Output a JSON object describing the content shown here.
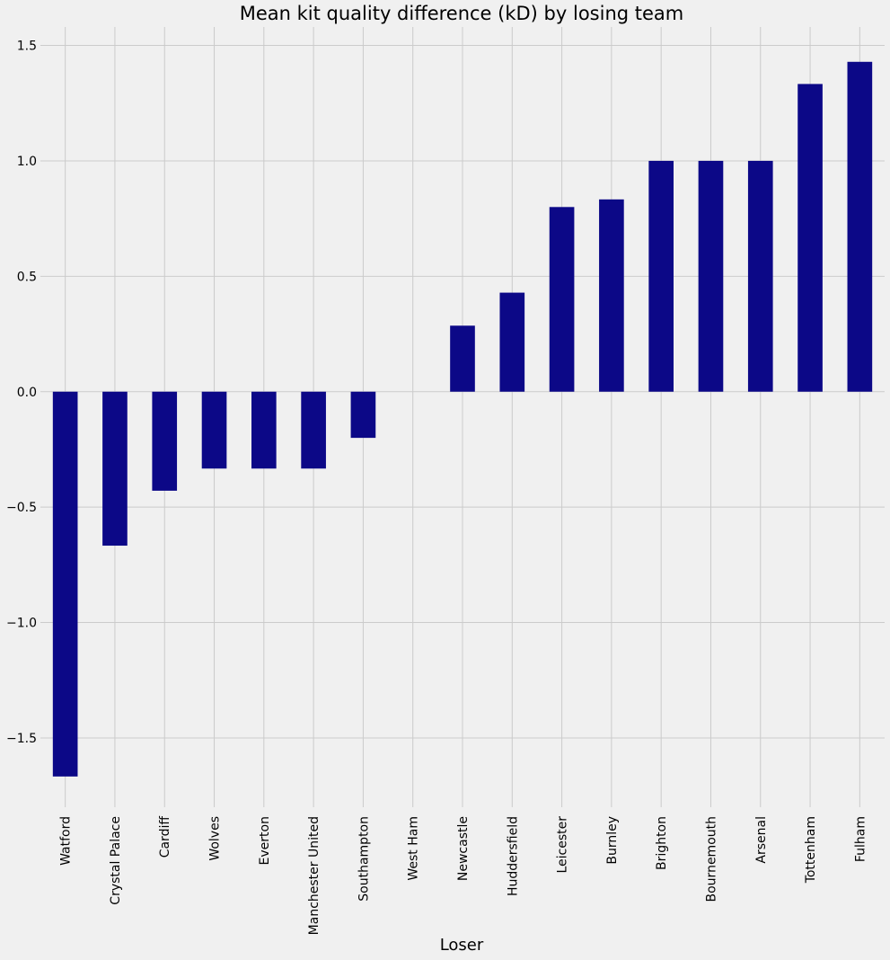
{
  "chart_data": {
    "type": "bar",
    "title": "Mean kit quality difference (kD) by losing team",
    "xlabel": "Loser",
    "ylabel": "",
    "categories": [
      "Watford",
      "Crystal Palace",
      "Cardiff",
      "Wolves",
      "Everton",
      "Manchester United",
      "Southampton",
      "West Ham",
      "Newcastle",
      "Huddersfield",
      "Leicester",
      "Burnley",
      "Brighton",
      "Bournemouth",
      "Arsenal",
      "Tottenham",
      "Fulham"
    ],
    "values": [
      -1.667,
      -0.667,
      -0.429,
      -0.333,
      -0.333,
      -0.333,
      -0.2,
      0.0,
      0.286,
      0.429,
      0.8,
      0.833,
      1.0,
      1.0,
      1.0,
      1.333,
      1.429
    ],
    "ylim": [
      -1.8,
      1.58
    ],
    "yticks": [
      -1.5,
      -1.0,
      -0.5,
      0.0,
      0.5,
      1.0,
      1.5
    ],
    "ytick_labels": [
      "−1.5",
      "−1.0",
      "−0.5",
      "0.0",
      "0.5",
      "1.0",
      "1.5"
    ],
    "grid": true,
    "bar_color": "#0c0887",
    "background_color": "#f0f0f0",
    "grid_color": "#cbcbcb"
  }
}
